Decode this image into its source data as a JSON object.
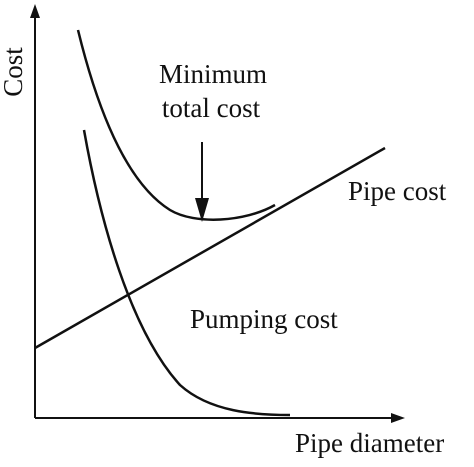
{
  "axes": {
    "y_label": "Cost",
    "x_label": "Pipe diameter"
  },
  "curves": [
    {
      "id": "total-cost",
      "label": ""
    },
    {
      "id": "pipe-cost",
      "label": "Pipe cost"
    },
    {
      "id": "pumping-cost",
      "label": "Pumping cost"
    }
  ],
  "annotation": {
    "line1": "Minimum",
    "line2": "total cost"
  },
  "style": {
    "stroke": "#111111",
    "background": "#ffffff"
  }
}
